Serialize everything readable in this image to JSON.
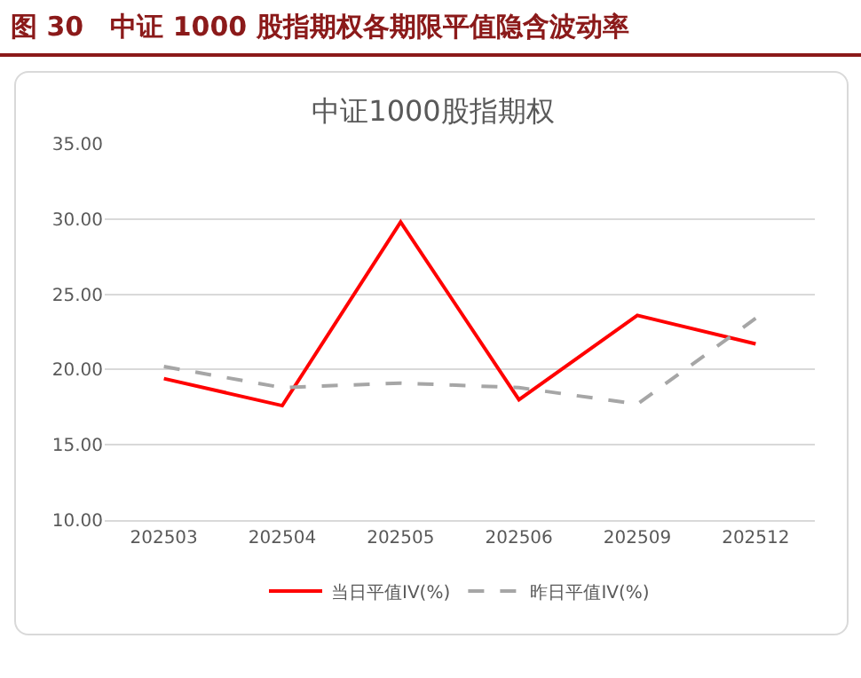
{
  "chart_data": {
    "type": "line",
    "title": "图 30　中证 1000 股指期权各期限平值隐含波动率",
    "subtitle": "中证1000股指期权",
    "categories": [
      "202503",
      "202504",
      "202505",
      "202506",
      "202509",
      "202512"
    ],
    "series": [
      {
        "name": "当日平值IV(%)",
        "color": "#ff0000",
        "line_style": "solid",
        "values": [
          19.4,
          17.6,
          29.8,
          18.0,
          23.6,
          21.7
        ]
      },
      {
        "name": "昨日平值IV(%)",
        "color": "#a6a6a6",
        "line_style": "dashed",
        "values": [
          20.2,
          18.8,
          19.1,
          18.8,
          17.7,
          23.4
        ]
      }
    ],
    "ylim": [
      10,
      35
    ],
    "yticks": [
      {
        "value": 10,
        "label": "10.00"
      },
      {
        "value": 15,
        "label": "15.00"
      },
      {
        "value": 20,
        "label": "20.00"
      },
      {
        "value": 25,
        "label": "25.00"
      },
      {
        "value": 30,
        "label": "30.00"
      },
      {
        "value": 35,
        "label": "35.00"
      }
    ],
    "grid": "y",
    "legend": "bottom",
    "marker": "none"
  }
}
